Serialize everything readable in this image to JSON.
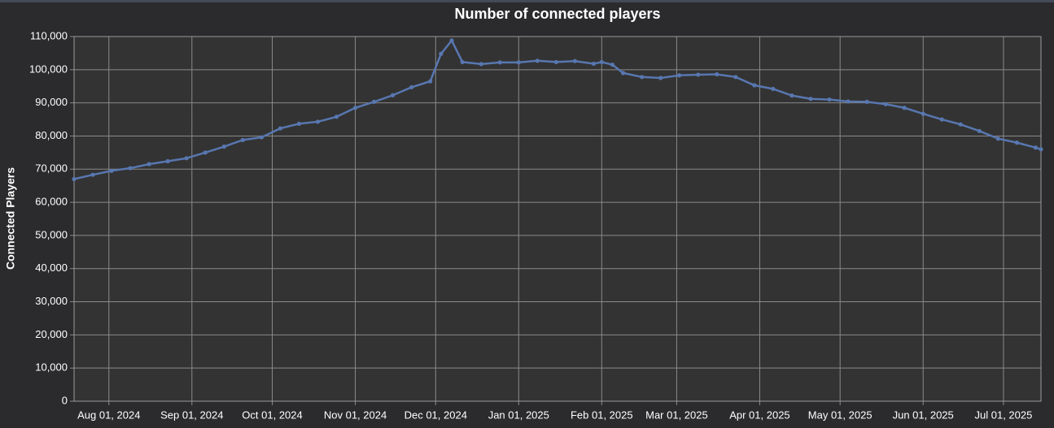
{
  "chart_data": {
    "type": "line",
    "title": "Number of connected players",
    "y_label": "Connected Players",
    "x": [
      "2024-07-19",
      "2024-07-26",
      "2024-08-02",
      "2024-08-09",
      "2024-08-16",
      "2024-08-23",
      "2024-08-30",
      "2024-09-06",
      "2024-09-13",
      "2024-09-20",
      "2024-09-27",
      "2024-10-04",
      "2024-10-11",
      "2024-10-18",
      "2024-10-25",
      "2024-11-01",
      "2024-11-08",
      "2024-11-15",
      "2024-11-22",
      "2024-11-29",
      "2024-12-03",
      "2024-12-07",
      "2024-12-11",
      "2024-12-18",
      "2024-12-25",
      "2025-01-01",
      "2025-01-08",
      "2025-01-15",
      "2025-01-22",
      "2025-01-29",
      "2025-02-01",
      "2025-02-05",
      "2025-02-09",
      "2025-02-16",
      "2025-02-23",
      "2025-03-02",
      "2025-03-09",
      "2025-03-16",
      "2025-03-23",
      "2025-03-30",
      "2025-04-06",
      "2025-04-13",
      "2025-04-20",
      "2025-04-27",
      "2025-05-04",
      "2025-05-11",
      "2025-05-18",
      "2025-05-25",
      "2025-06-01",
      "2025-06-08",
      "2025-06-15",
      "2025-06-22",
      "2025-06-29",
      "2025-07-06",
      "2025-07-13",
      "2025-07-15"
    ],
    "series": [
      {
        "name": "Connected Players",
        "color": "#5877b0",
        "values": [
          67000,
          68300,
          69500,
          70300,
          71500,
          72400,
          73300,
          75000,
          76800,
          78800,
          79600,
          82300,
          83700,
          84300,
          85800,
          88500,
          90300,
          92300,
          94700,
          96500,
          104800,
          108800,
          102300,
          101700,
          102200,
          102200,
          102700,
          102300,
          102600,
          101800,
          102300,
          101500,
          99000,
          97800,
          97500,
          98300,
          98500,
          98600,
          97800,
          95300,
          94200,
          92200,
          91200,
          91000,
          90400,
          90300,
          89600,
          88500,
          86700,
          85000,
          83500,
          81500,
          79200,
          78000,
          76500,
          76000
        ]
      }
    ],
    "xlim": [
      "2024-07-19",
      "2025-07-15"
    ],
    "xticks": [
      {
        "value": "2024-08-01",
        "label": "Aug 01, 2024"
      },
      {
        "value": "2024-09-01",
        "label": "Sep 01, 2024"
      },
      {
        "value": "2024-10-01",
        "label": "Oct 01, 2024"
      },
      {
        "value": "2024-11-01",
        "label": "Nov 01, 2024"
      },
      {
        "value": "2024-12-01",
        "label": "Dec 01, 2024"
      },
      {
        "value": "2025-01-01",
        "label": "Jan 01, 2025"
      },
      {
        "value": "2025-02-01",
        "label": "Feb 01, 2025"
      },
      {
        "value": "2025-03-01",
        "label": "Mar 01, 2025"
      },
      {
        "value": "2025-04-01",
        "label": "Apr 01, 2025"
      },
      {
        "value": "2025-05-01",
        "label": "May 01, 2025"
      },
      {
        "value": "2025-06-01",
        "label": "Jun 01, 2025"
      },
      {
        "value": "2025-07-01",
        "label": "Jul 01, 2025"
      }
    ],
    "ylim": [
      0,
      110000
    ],
    "yticks": [
      0,
      {
        "value": 10000,
        "label": "10,000"
      },
      {
        "value": 20000,
        "label": "20,000"
      },
      {
        "value": 30000,
        "label": "30,000"
      },
      {
        "value": 40000,
        "label": "40,000"
      },
      {
        "value": 50000,
        "label": "50,000"
      },
      {
        "value": 60000,
        "label": "60,000"
      },
      {
        "value": 70000,
        "label": "70,000"
      },
      {
        "value": 80000,
        "label": "80,000"
      },
      {
        "value": 90000,
        "label": "90,000"
      },
      {
        "value": 100000,
        "label": "100,000"
      },
      {
        "value": 110000,
        "label": "110,000"
      }
    ],
    "grid": true
  }
}
